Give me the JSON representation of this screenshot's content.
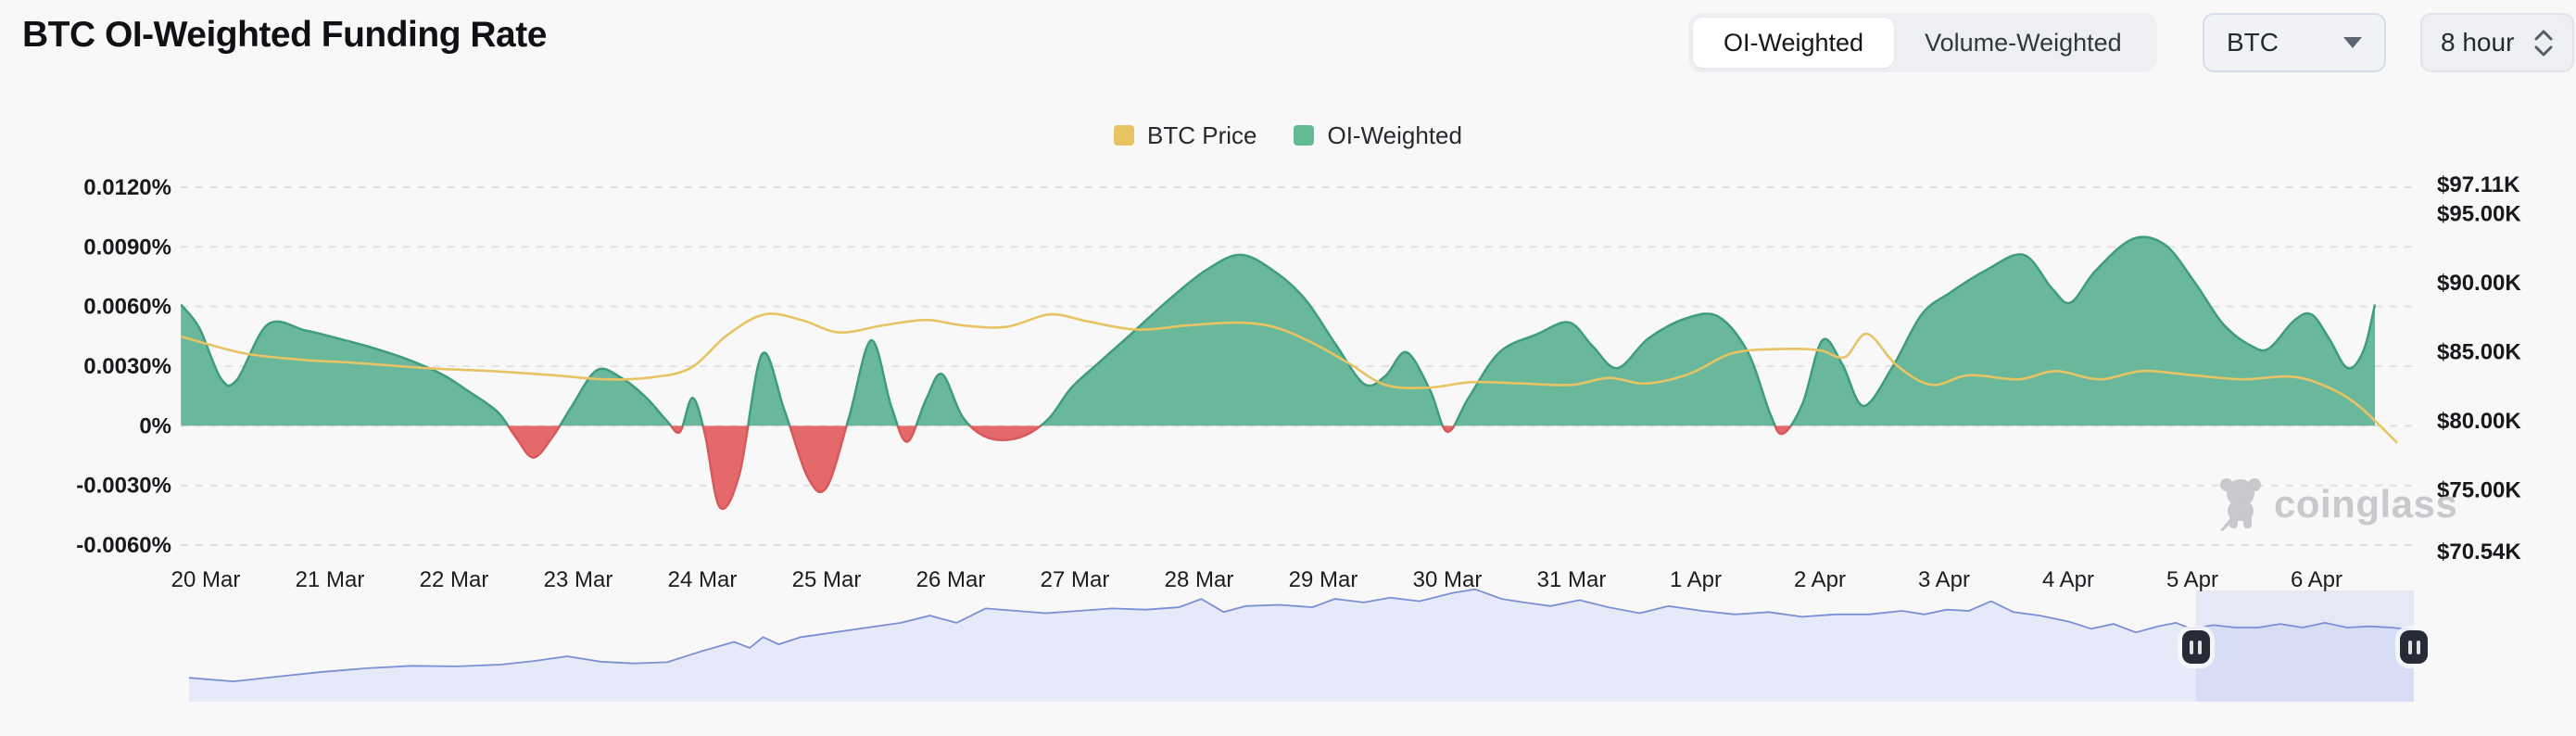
{
  "header": {
    "title": "BTC OI-Weighted Funding Rate",
    "toggle": {
      "options": [
        "OI-Weighted",
        "Volume-Weighted"
      ],
      "selected": "OI-Weighted"
    },
    "symbol_select": {
      "value": "BTC"
    },
    "interval_select": {
      "value": "8 hour"
    }
  },
  "legend": [
    {
      "label": "BTC Price",
      "color": "#e7c363"
    },
    {
      "label": "OI-Weighted",
      "color": "#62b992"
    }
  ],
  "watermark": {
    "text": "coinglass",
    "color": "#c7c9cc"
  },
  "chart_data": {
    "type": "area",
    "title": "BTC OI-Weighted Funding Rate",
    "grid": "dashed-horizontal",
    "legend_position": "top-center",
    "x_axis": {
      "labels": [
        "20 Mar",
        "21 Mar",
        "22 Mar",
        "23 Mar",
        "24 Mar",
        "25 Mar",
        "26 Mar",
        "27 Mar",
        "28 Mar",
        "29 Mar",
        "30 Mar",
        "31 Mar",
        "1 Apr",
        "2 Apr",
        "3 Apr",
        "4 Apr",
        "5 Apr",
        "6 Apr"
      ]
    },
    "y_axis_left": {
      "title": "funding rate",
      "labels": [
        "0.0120%",
        "0.0090%",
        "0.0060%",
        "0.0030%",
        "0%",
        "-0.0030%",
        "-0.0060%"
      ],
      "values": [
        0.012,
        0.009,
        0.006,
        0.003,
        0,
        -0.003,
        -0.006
      ],
      "range": [
        -0.006,
        0.012
      ]
    },
    "y_axis_right": {
      "title": "BTC price",
      "labels": [
        "$97.11K",
        "$95.00K",
        "$90.00K",
        "$85.00K",
        "$80.00K",
        "$75.00K",
        "$70.54K"
      ],
      "values_k": [
        97.11,
        95.0,
        90.0,
        85.0,
        80.0,
        75.0,
        70.54
      ],
      "range_k": [
        70.54,
        97.11
      ]
    },
    "series": [
      {
        "name": "OI-Weighted",
        "type": "area",
        "unit": "%",
        "color_positive": "#6ab89c",
        "edge_positive": "#3f9c7d",
        "color_negative": "#e4696b",
        "edge_negative": "#d6595c",
        "points": [
          [
            -0.2,
            0.0061
          ],
          [
            -0.05,
            0.0049
          ],
          [
            0.12,
            0.0024
          ],
          [
            0.25,
            0.0023
          ],
          [
            0.5,
            0.0051
          ],
          [
            0.8,
            0.0048
          ],
          [
            1.0,
            0.0045
          ],
          [
            1.3,
            0.004
          ],
          [
            1.6,
            0.0034
          ],
          [
            1.9,
            0.0026
          ],
          [
            2.1,
            0.0018
          ],
          [
            2.35,
            0.0007
          ],
          [
            2.5,
            -0.0006
          ],
          [
            2.64,
            -0.0016
          ],
          [
            2.8,
            -0.0005
          ],
          [
            2.95,
            0.001
          ],
          [
            3.15,
            0.0028
          ],
          [
            3.35,
            0.0024
          ],
          [
            3.55,
            0.0014
          ],
          [
            3.72,
            0.0002
          ],
          [
            3.82,
            -0.0003
          ],
          [
            3.92,
            0.0014
          ],
          [
            4.02,
            -0.0004
          ],
          [
            4.14,
            -0.0041
          ],
          [
            4.3,
            -0.0024
          ],
          [
            4.48,
            0.0036
          ],
          [
            4.66,
            0.0008
          ],
          [
            4.85,
            -0.0026
          ],
          [
            5.0,
            -0.0031
          ],
          [
            5.18,
            0.0004
          ],
          [
            5.36,
            0.0043
          ],
          [
            5.52,
            0.001
          ],
          [
            5.65,
            -0.0008
          ],
          [
            5.8,
            0.0013
          ],
          [
            5.93,
            0.0026
          ],
          [
            6.1,
            0.0004
          ],
          [
            6.3,
            -0.0006
          ],
          [
            6.55,
            -0.0006
          ],
          [
            6.78,
            0.0003
          ],
          [
            6.97,
            0.0019
          ],
          [
            7.18,
            0.0031
          ],
          [
            7.45,
            0.0046
          ],
          [
            7.75,
            0.0063
          ],
          [
            8.05,
            0.0078
          ],
          [
            8.33,
            0.0086
          ],
          [
            8.6,
            0.0078
          ],
          [
            8.85,
            0.0064
          ],
          [
            9.1,
            0.0041
          ],
          [
            9.33,
            0.0021
          ],
          [
            9.5,
            0.0025
          ],
          [
            9.67,
            0.0037
          ],
          [
            9.86,
            0.0018
          ],
          [
            10.0,
            -0.0003
          ],
          [
            10.17,
            0.0014
          ],
          [
            10.42,
            0.0037
          ],
          [
            10.72,
            0.0046
          ],
          [
            10.98,
            0.0052
          ],
          [
            11.17,
            0.004
          ],
          [
            11.37,
            0.0029
          ],
          [
            11.62,
            0.0044
          ],
          [
            11.92,
            0.0054
          ],
          [
            12.18,
            0.0055
          ],
          [
            12.42,
            0.0037
          ],
          [
            12.6,
            0.0006
          ],
          [
            12.7,
            -0.0004
          ],
          [
            12.86,
            0.0011
          ],
          [
            13.02,
            0.0043
          ],
          [
            13.18,
            0.0031
          ],
          [
            13.35,
            0.001
          ],
          [
            13.58,
            0.0029
          ],
          [
            13.82,
            0.0056
          ],
          [
            14.05,
            0.0067
          ],
          [
            14.33,
            0.0078
          ],
          [
            14.64,
            0.0086
          ],
          [
            14.87,
            0.0069
          ],
          [
            15.02,
            0.0062
          ],
          [
            15.22,
            0.0078
          ],
          [
            15.52,
            0.0094
          ],
          [
            15.78,
            0.0091
          ],
          [
            16.02,
            0.0072
          ],
          [
            16.25,
            0.0051
          ],
          [
            16.48,
            0.004
          ],
          [
            16.62,
            0.0039
          ],
          [
            16.82,
            0.0053
          ],
          [
            16.96,
            0.0056
          ],
          [
            17.1,
            0.0044
          ],
          [
            17.25,
            0.0029
          ],
          [
            17.38,
            0.0038
          ],
          [
            17.47,
            0.0061
          ]
        ]
      },
      {
        "name": "BTC Price",
        "type": "line",
        "unit": "USD thousands",
        "color": "#e7c363",
        "points": [
          [
            -0.2,
            86.1
          ],
          [
            0.3,
            84.9
          ],
          [
            0.8,
            84.4
          ],
          [
            1.2,
            84.2
          ],
          [
            1.8,
            83.8
          ],
          [
            2.3,
            83.6
          ],
          [
            2.8,
            83.3
          ],
          [
            3.2,
            83.0
          ],
          [
            3.55,
            83.1
          ],
          [
            3.9,
            83.8
          ],
          [
            4.2,
            86.2
          ],
          [
            4.5,
            87.7
          ],
          [
            4.8,
            87.3
          ],
          [
            5.1,
            86.4
          ],
          [
            5.45,
            86.9
          ],
          [
            5.8,
            87.3
          ],
          [
            6.1,
            86.9
          ],
          [
            6.45,
            86.8
          ],
          [
            6.8,
            87.7
          ],
          [
            7.1,
            87.2
          ],
          [
            7.5,
            86.6
          ],
          [
            7.9,
            86.9
          ],
          [
            8.3,
            87.1
          ],
          [
            8.6,
            86.8
          ],
          [
            8.9,
            85.7
          ],
          [
            9.2,
            84.2
          ],
          [
            9.5,
            82.6
          ],
          [
            9.85,
            82.4
          ],
          [
            10.2,
            82.8
          ],
          [
            10.6,
            82.7
          ],
          [
            11.0,
            82.6
          ],
          [
            11.3,
            83.1
          ],
          [
            11.6,
            82.7
          ],
          [
            11.95,
            83.4
          ],
          [
            12.3,
            84.9
          ],
          [
            12.7,
            85.2
          ],
          [
            13.0,
            85.1
          ],
          [
            13.2,
            84.6
          ],
          [
            13.38,
            86.3
          ],
          [
            13.62,
            84.0
          ],
          [
            13.9,
            82.6
          ],
          [
            14.2,
            83.3
          ],
          [
            14.6,
            83.0
          ],
          [
            14.9,
            83.6
          ],
          [
            15.25,
            83.0
          ],
          [
            15.6,
            83.6
          ],
          [
            16.0,
            83.3
          ],
          [
            16.4,
            83.0
          ],
          [
            16.8,
            83.2
          ],
          [
            17.1,
            82.4
          ],
          [
            17.35,
            81.0
          ],
          [
            17.65,
            78.4
          ]
        ]
      }
    ],
    "navigator": {
      "description": "mini BTC price overview strip with brush selection at right end",
      "area_color": "#e6eaf8",
      "line_color": "#7b8fd6",
      "selection_color": "rgba(120,142,224,0.14)",
      "selection_frac": [
        0.902,
        1.0
      ],
      "points": [
        [
          0,
          0.2
        ],
        [
          0.02,
          0.17
        ],
        [
          0.04,
          0.21
        ],
        [
          0.06,
          0.25
        ],
        [
          0.08,
          0.28
        ],
        [
          0.1,
          0.3
        ],
        [
          0.12,
          0.295
        ],
        [
          0.14,
          0.31
        ],
        [
          0.155,
          0.34
        ],
        [
          0.17,
          0.38
        ],
        [
          0.185,
          0.335
        ],
        [
          0.2,
          0.32
        ],
        [
          0.215,
          0.33
        ],
        [
          0.23,
          0.42
        ],
        [
          0.245,
          0.5
        ],
        [
          0.252,
          0.45
        ],
        [
          0.258,
          0.54
        ],
        [
          0.265,
          0.48
        ],
        [
          0.275,
          0.54
        ],
        [
          0.29,
          0.58
        ],
        [
          0.305,
          0.62
        ],
        [
          0.32,
          0.66
        ],
        [
          0.333,
          0.72
        ],
        [
          0.345,
          0.66
        ],
        [
          0.358,
          0.78
        ],
        [
          0.372,
          0.76
        ],
        [
          0.385,
          0.74
        ],
        [
          0.4,
          0.76
        ],
        [
          0.415,
          0.78
        ],
        [
          0.43,
          0.77
        ],
        [
          0.445,
          0.79
        ],
        [
          0.455,
          0.86
        ],
        [
          0.465,
          0.75
        ],
        [
          0.475,
          0.8
        ],
        [
          0.49,
          0.81
        ],
        [
          0.505,
          0.79
        ],
        [
          0.515,
          0.86
        ],
        [
          0.528,
          0.83
        ],
        [
          0.54,
          0.87
        ],
        [
          0.553,
          0.84
        ],
        [
          0.568,
          0.91
        ],
        [
          0.578,
          0.94
        ],
        [
          0.59,
          0.86
        ],
        [
          0.6,
          0.83
        ],
        [
          0.612,
          0.8
        ],
        [
          0.625,
          0.85
        ],
        [
          0.638,
          0.79
        ],
        [
          0.652,
          0.74
        ],
        [
          0.665,
          0.8
        ],
        [
          0.68,
          0.76
        ],
        [
          0.695,
          0.73
        ],
        [
          0.71,
          0.75
        ],
        [
          0.725,
          0.71
        ],
        [
          0.74,
          0.73
        ],
        [
          0.755,
          0.73
        ],
        [
          0.77,
          0.76
        ],
        [
          0.78,
          0.73
        ],
        [
          0.79,
          0.77
        ],
        [
          0.8,
          0.76
        ],
        [
          0.81,
          0.84
        ],
        [
          0.82,
          0.75
        ],
        [
          0.832,
          0.72
        ],
        [
          0.845,
          0.67
        ],
        [
          0.855,
          0.61
        ],
        [
          0.865,
          0.65
        ],
        [
          0.875,
          0.58
        ],
        [
          0.885,
          0.63
        ],
        [
          0.893,
          0.66
        ],
        [
          0.9,
          0.61
        ],
        [
          0.91,
          0.64
        ],
        [
          0.92,
          0.62
        ],
        [
          0.93,
          0.62
        ],
        [
          0.94,
          0.65
        ],
        [
          0.95,
          0.62
        ],
        [
          0.96,
          0.66
        ],
        [
          0.97,
          0.62
        ],
        [
          0.98,
          0.63
        ],
        [
          0.99,
          0.62
        ],
        [
          1.0,
          0.6
        ]
      ]
    }
  }
}
